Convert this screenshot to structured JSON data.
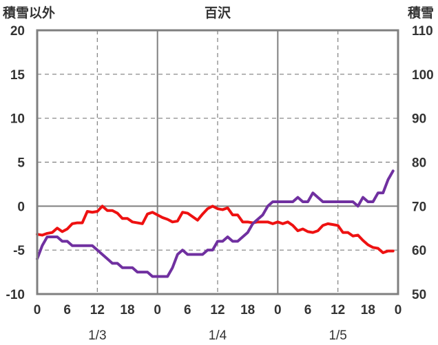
{
  "chart_data": {
    "type": "line",
    "title": "百沢",
    "left_axis": {
      "label": "積雪以外",
      "range": [
        -10,
        20
      ],
      "ticks": [
        -10,
        -5,
        0,
        5,
        10,
        15,
        20
      ]
    },
    "right_axis": {
      "label": "積雪",
      "range": [
        50,
        110
      ],
      "ticks": [
        50,
        60,
        70,
        80,
        90,
        100,
        110
      ]
    },
    "x_axis": {
      "range_hours": [
        0,
        72
      ],
      "tick_hours": [
        0,
        6,
        12,
        18,
        24,
        30,
        36,
        42,
        48,
        54,
        60,
        66,
        72
      ],
      "tick_labels": [
        "0",
        "6",
        "12",
        "18",
        "0",
        "6",
        "12",
        "18",
        "0",
        "6",
        "12",
        "18",
        "0"
      ],
      "day_labels": [
        {
          "label": "1/3",
          "hour": 12
        },
        {
          "label": "1/4",
          "hour": 36
        },
        {
          "label": "1/5",
          "hour": 60
        }
      ]
    },
    "grid": {
      "vertical_dashed_hours": [
        12,
        36,
        60
      ],
      "vertical_solid_hours": [
        24,
        48
      ],
      "horizontal_dashed": true
    },
    "series": [
      {
        "axis": "left",
        "color": "#ee1111",
        "values": [
          -3.2,
          -3.3,
          -3.1,
          -3.0,
          -2.5,
          -2.9,
          -2.6,
          -2.0,
          -1.9,
          -1.9,
          -0.6,
          -0.7,
          -0.6,
          0.0,
          -0.5,
          -0.5,
          -0.8,
          -1.4,
          -1.4,
          -1.8,
          -1.9,
          -2.0,
          -0.9,
          -0.7,
          -1.0,
          -1.3,
          -1.5,
          -1.8,
          -1.7,
          -0.7,
          -0.8,
          -1.2,
          -1.6,
          -0.9,
          -0.3,
          0.0,
          -0.3,
          -0.4,
          -0.2,
          -1.0,
          -1.0,
          -1.8,
          -1.8,
          -1.9,
          -1.8,
          -1.8,
          -1.8,
          -2.0,
          -1.8,
          -2.0,
          -1.8,
          -2.2,
          -2.8,
          -2.6,
          -2.9,
          -3.0,
          -2.8,
          -2.2,
          -2.0,
          -2.1,
          -2.2,
          -3.0,
          -3.0,
          -3.4,
          -3.3,
          -3.9,
          -4.4,
          -4.7,
          -4.8,
          -5.3,
          -5.1,
          -5.1
        ]
      },
      {
        "axis": "right",
        "color": "#7030a0",
        "values": [
          58,
          61,
          63,
          63,
          63,
          62,
          62,
          61,
          61,
          61,
          61,
          61,
          60,
          59,
          58,
          57,
          57,
          56,
          56,
          56,
          55,
          55,
          55,
          54,
          54,
          54,
          54,
          56,
          59,
          60,
          59,
          59,
          59,
          59,
          60,
          60,
          62,
          62,
          63,
          62,
          62,
          63,
          64,
          66,
          67,
          68,
          70,
          71,
          71,
          71,
          71,
          71,
          72,
          71,
          71,
          73,
          72,
          71,
          71,
          71,
          71,
          71,
          71,
          71,
          70,
          72,
          71,
          71,
          73,
          73,
          76,
          78
        ]
      }
    ]
  }
}
